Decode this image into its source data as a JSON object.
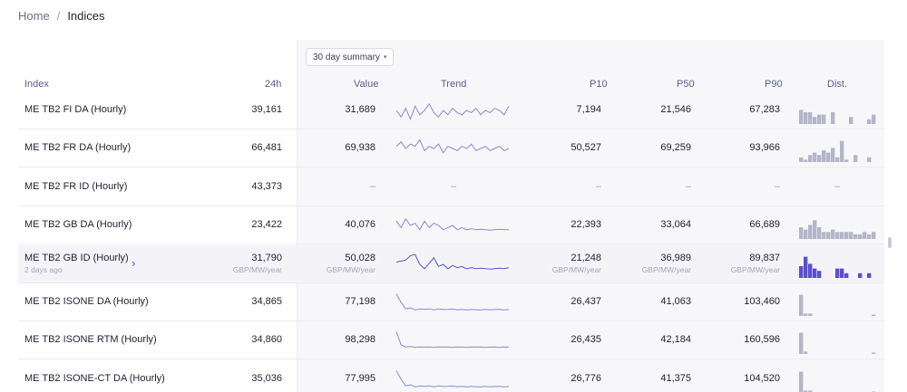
{
  "breadcrumb": {
    "home": "Home",
    "separator": "/",
    "current": "Indices"
  },
  "summary_select": {
    "value": "30 day summary",
    "icon": "chevron-down-icon"
  },
  "columns": {
    "index": "Index",
    "h24": "24h",
    "value": "Value",
    "trend": "Trend",
    "p10": "P10",
    "p50": "P50",
    "p90": "P90",
    "dist": "Dist."
  },
  "rows": [
    {
      "name": "ME TB2 FI DA (Hourly)",
      "h24": "39,161",
      "value": "31,689",
      "p10": "7,194",
      "p50": "21,546",
      "p90": "67,283",
      "trend": [
        0.5,
        0.2,
        0.6,
        0.1,
        0.7,
        0.3,
        0.5,
        0.8,
        0.4,
        0.2,
        0.5,
        0.3,
        0.6,
        0.4,
        0.3,
        0.5,
        0.4,
        0.6,
        0.3,
        0.5,
        0.4,
        0.6,
        0.5,
        0.3,
        0.7
      ],
      "dist": [
        0.6,
        0.5,
        0.5,
        0.3,
        0.4,
        0.4,
        0,
        0.5,
        0,
        0,
        0,
        0.3,
        0,
        0,
        0,
        0.2,
        0.4
      ]
    },
    {
      "name": "ME TB2 FR DA (Hourly)",
      "h24": "66,481",
      "value": "69,938",
      "p10": "50,527",
      "p50": "69,259",
      "p90": "93,966",
      "trend": [
        0.6,
        0.8,
        0.5,
        0.7,
        0.6,
        0.9,
        0.4,
        0.6,
        0.5,
        0.7,
        0.3,
        0.6,
        0.5,
        0.4,
        0.6,
        0.5,
        0.7,
        0.4,
        0.5,
        0.6,
        0.4,
        0.5,
        0.6,
        0.4,
        0.5
      ],
      "dist": [
        0.2,
        0.1,
        0.3,
        0.4,
        0.3,
        0.5,
        0.4,
        0.6,
        0.2,
        0.9,
        0.1,
        0,
        0.3,
        0,
        0,
        0.2,
        0
      ]
    },
    {
      "name": "ME TB2 FR ID (Hourly)",
      "h24": "43,373",
      "value": "–",
      "p10": "–",
      "p50": "–",
      "p90": "–",
      "trend_empty": "–",
      "dist_empty": "–"
    },
    {
      "name": "ME TB2 GB DA (Hourly)",
      "h24": "23,422",
      "value": "40,076",
      "p10": "22,393",
      "p50": "33,064",
      "p90": "66,689",
      "trend": [
        0.7,
        0.4,
        0.8,
        0.5,
        0.6,
        0.3,
        0.7,
        0.4,
        0.6,
        0.5,
        0.3,
        0.4,
        0.5,
        0.3,
        0.4,
        0.3,
        0.35,
        0.3,
        0.32,
        0.3,
        0.28,
        0.3,
        0.32,
        0.3,
        0.3
      ],
      "dist": [
        0.5,
        0.4,
        0.6,
        0.8,
        0.5,
        0.3,
        0.3,
        0.4,
        0.3,
        0.3,
        0.3,
        0.3,
        0.2,
        0.2,
        0.3,
        0.2,
        0.3
      ]
    },
    {
      "name": "ME TB2 GB ID (Hourly)",
      "sub": "2 days ago",
      "h24": "31,790",
      "value": "50,028",
      "p10": "21,248",
      "p50": "36,989",
      "p90": "89,837",
      "unit": "GBP/MW/year",
      "highlight": true,
      "trend": [
        0.6,
        0.65,
        0.7,
        0.9,
        0.95,
        0.5,
        0.3,
        0.55,
        0.8,
        0.4,
        0.5,
        0.3,
        0.45,
        0.35,
        0.4,
        0.3,
        0.35,
        0.3,
        0.32,
        0.3,
        0.28,
        0.3,
        0.32,
        0.3,
        0.34
      ],
      "dist": [
        0.5,
        0.9,
        0.6,
        0.4,
        0.3,
        0,
        0,
        0,
        0.4,
        0.4,
        0.2,
        0,
        0,
        0.2,
        0,
        0.2,
        0
      ]
    },
    {
      "name": "ME TB2 ISONE DA (Hourly)",
      "h24": "34,865",
      "value": "77,198",
      "p10": "26,437",
      "p50": "41,063",
      "p90": "103,460",
      "trend": [
        0.9,
        0.5,
        0.2,
        0.25,
        0.15,
        0.2,
        0.18,
        0.2,
        0.15,
        0.2,
        0.17,
        0.18,
        0.2,
        0.16,
        0.18,
        0.15,
        0.17,
        0.16,
        0.15,
        0.18,
        0.16,
        0.17,
        0.18,
        0.15,
        0.17
      ],
      "dist": [
        0.9,
        0.1,
        0.1,
        0,
        0,
        0,
        0,
        0,
        0,
        0,
        0,
        0,
        0,
        0,
        0,
        0,
        0.05
      ]
    },
    {
      "name": "ME TB2 ISONE RTM (Hourly)",
      "h24": "34,860",
      "value": "98,298",
      "p10": "26,435",
      "p50": "42,184",
      "p90": "160,596",
      "trend": [
        0.9,
        0.3,
        0.2,
        0.22,
        0.18,
        0.2,
        0.19,
        0.2,
        0.18,
        0.2,
        0.19,
        0.2,
        0.18,
        0.2,
        0.19,
        0.18,
        0.2,
        0.19,
        0.2,
        0.18,
        0.19,
        0.2,
        0.18,
        0.2,
        0.19
      ],
      "dist": [
        0.9,
        0.1,
        0,
        0,
        0,
        0,
        0,
        0,
        0,
        0,
        0,
        0,
        0,
        0,
        0,
        0,
        0.05
      ]
    },
    {
      "name": "ME TB2 ISONE-CT DA (Hourly)",
      "h24": "35,036",
      "value": "77,995",
      "p10": "26,776",
      "p50": "41,375",
      "p90": "104,520",
      "trend": [
        0.9,
        0.5,
        0.2,
        0.25,
        0.15,
        0.2,
        0.18,
        0.2,
        0.15,
        0.2,
        0.17,
        0.18,
        0.2,
        0.16,
        0.18,
        0.15,
        0.17,
        0.16,
        0.15,
        0.18,
        0.16,
        0.17,
        0.18,
        0.15,
        0.17
      ],
      "dist": [
        0.9,
        0.1,
        0.1,
        0,
        0,
        0,
        0,
        0,
        0,
        0,
        0,
        0,
        0,
        0,
        0,
        0,
        0.05
      ]
    }
  ],
  "colors": {
    "accent": "#5a4fd1",
    "spark": "#8b87d8",
    "bar": "#b4b5c8"
  }
}
